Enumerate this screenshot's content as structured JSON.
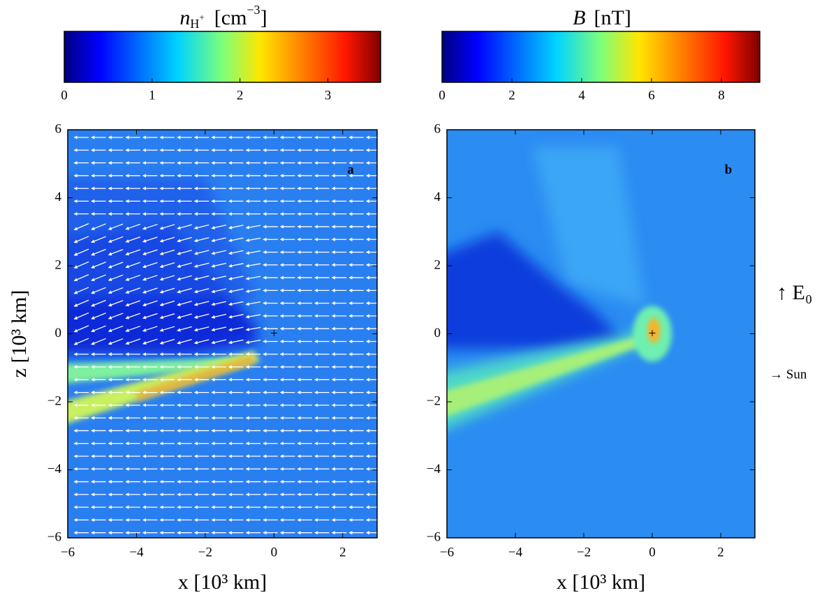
{
  "chart_data": [
    {
      "type": "heatmap",
      "panel_label": "a",
      "colorbar_label": {
        "symbol": "n",
        "sub": "H",
        "sub_sup": "+",
        "unit": "[cm",
        "unit_sup": "−3",
        "close": "]"
      },
      "colorbar_lim": [
        0,
        3.6
      ],
      "colorbar_ticks": [
        0,
        1,
        2,
        3
      ],
      "xlabel": "x [10³  km]",
      "ylabel": "z [10³  km]",
      "xlim": [
        -6,
        3
      ],
      "ylim": [
        -6,
        6
      ],
      "xticks": [
        {
          "value": -6,
          "label": "−6"
        },
        {
          "value": -4,
          "label": "−4"
        },
        {
          "value": -2,
          "label": "−2"
        },
        0,
        2
      ],
      "yticks": [
        {
          "value": -6,
          "label": "−6"
        },
        {
          "value": -4,
          "label": "−4"
        },
        {
          "value": -2,
          "label": "−2"
        },
        0,
        2,
        4,
        6
      ],
      "origin_marker": "+",
      "vectors": true
    },
    {
      "type": "heatmap",
      "panel_label": "b",
      "colorbar_label": {
        "symbol": "B",
        "unit": "[nT",
        "close": "]"
      },
      "colorbar_lim": [
        0,
        9.1
      ],
      "colorbar_ticks": [
        0,
        2,
        4,
        6,
        8
      ],
      "xlabel": "x [10³  km]",
      "xlim": [
        -6,
        3
      ],
      "ylim": [
        -6,
        6
      ],
      "xticks": [
        {
          "value": -6,
          "label": "−6"
        },
        {
          "value": -4,
          "label": "−4"
        },
        {
          "value": -2,
          "label": "−2"
        },
        0,
        2
      ],
      "yticks": [
        {
          "value": -6,
          "label": "−6"
        },
        {
          "value": -4,
          "label": "−4"
        },
        {
          "value": -2,
          "label": "−2"
        },
        0,
        2,
        4,
        6
      ],
      "origin_marker": "+",
      "vectors": false
    }
  ],
  "annotations": [
    "↑ E₀",
    "→ Sun"
  ]
}
